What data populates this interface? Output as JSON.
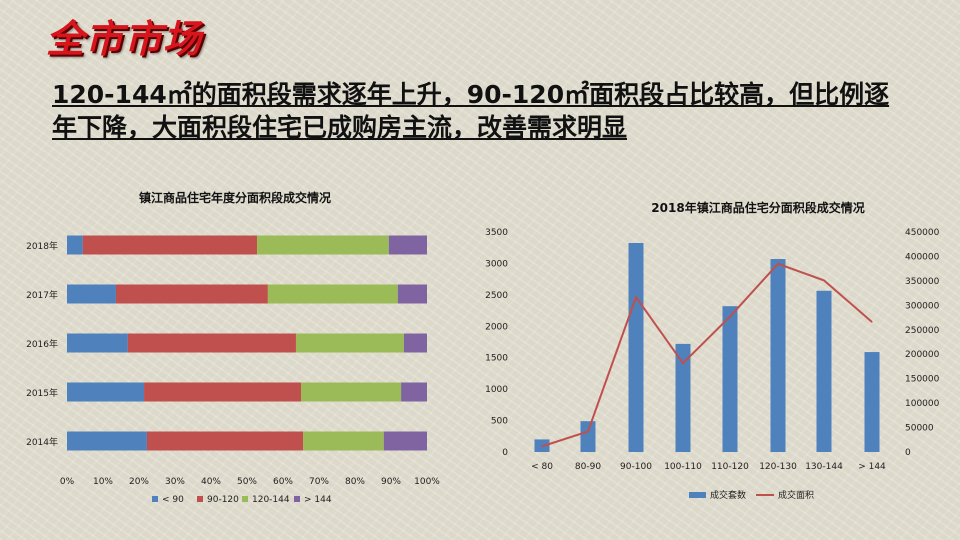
{
  "header": {
    "title": "全市市场"
  },
  "headline": "120-144㎡的面积段需求逐年上升，90-120㎡面积段占比较高，但比例逐年下降，大面积段住宅已成购房主流，改善需求明显",
  "chart_data": [
    {
      "type": "bar",
      "orientation": "horizontal",
      "stacked": "percent",
      "title": "镇江商品住宅年度分面积段成交情况",
      "categories": [
        "2018年",
        "2017年",
        "2016年",
        "2015年",
        "2014年"
      ],
      "xlim": [
        0,
        100
      ],
      "xticks": [
        "0%",
        "10%",
        "20%",
        "30%",
        "40%",
        "50%",
        "60%",
        "70%",
        "80%",
        "90%",
        "100%"
      ],
      "legend": "bottom",
      "series": [
        {
          "name": "< 90",
          "color": "#4f81bd",
          "values": [
            4.4,
            13.6,
            16.9,
            21.4,
            22.2
          ]
        },
        {
          "name": "90-120",
          "color": "#c0504d",
          "values": [
            48.4,
            42.2,
            46.7,
            43.6,
            43.4
          ]
        },
        {
          "name": "120-144",
          "color": "#9bbb59",
          "values": [
            36.6,
            36.1,
            30.0,
            27.8,
            22.4
          ]
        },
        {
          "name": "> 144",
          "color": "#8064a2",
          "values": [
            10.6,
            8.1,
            6.4,
            7.2,
            12.0
          ]
        }
      ]
    },
    {
      "type": "bar+line",
      "title": "2018年镇江商品住宅分面积段成交情况",
      "categories": [
        "< 80",
        "80-90",
        "90-100",
        "100-110",
        "110-120",
        "120-130",
        "130-144",
        "> 144"
      ],
      "ylim": [
        0,
        3500
      ],
      "yticks": [
        "0",
        "500",
        "1000",
        "1500",
        "2000",
        "2500",
        "3000",
        "3500"
      ],
      "y2lim": [
        0,
        450000
      ],
      "y2ticks": [
        "0",
        "50000",
        "100000",
        "150000",
        "200000",
        "250000",
        "300000",
        "350000",
        "400000",
        "450000"
      ],
      "legend": "bottom",
      "series": [
        {
          "name": "成交套数",
          "type": "bar",
          "axis": "left",
          "color": "#4f81bd",
          "values": [
            200,
            490,
            3325,
            1720,
            2320,
            3070,
            2565,
            1590
          ]
        },
        {
          "name": "成交面积",
          "type": "line",
          "axis": "right",
          "color": "#c0504d",
          "values": [
            11500,
            42000,
            317000,
            181500,
            277000,
            385000,
            351000,
            266000
          ]
        }
      ]
    }
  ]
}
